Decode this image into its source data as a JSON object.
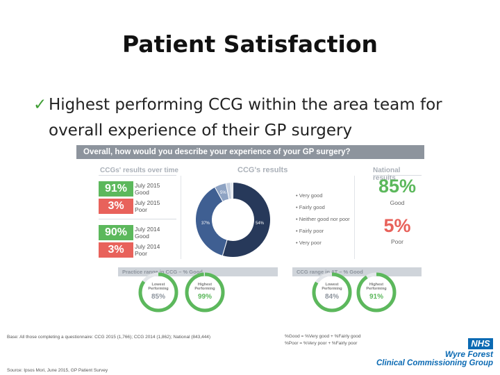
{
  "title": "Patient Satisfaction",
  "bullet": {
    "line1": "Highest performing CCG within the area team for",
    "line2": "overall experience of their GP surgery"
  },
  "panel": {
    "header": "Overall, how would you describe your experience of your GP surgery?",
    "left_heading": "CCGs' results over time",
    "mid_heading": "CCG's results",
    "right_heading": "National results",
    "results_over_time": [
      {
        "pct": "91%",
        "period": "July 2015",
        "label": "Good"
      },
      {
        "pct": "3%",
        "period": "July 2015",
        "label": "Poor"
      },
      {
        "pct": "90%",
        "period": "July 2014",
        "label": "Good"
      },
      {
        "pct": "3%",
        "period": "July 2014",
        "label": "Poor"
      }
    ],
    "donut": {
      "label_small": "5%",
      "label_mid": "37%",
      "label_large": "54%",
      "slices": [
        {
          "name": "Very good",
          "value": 54,
          "color": "#27395a"
        },
        {
          "name": "Fairly good",
          "value": 37,
          "color": "#3f5f92"
        },
        {
          "name": "Neither good nor poor",
          "value": 5,
          "color": "#8ea3c3"
        },
        {
          "name": "Fairly poor",
          "value": 2,
          "color": "#c6d0e0"
        },
        {
          "name": "Very poor",
          "value": 1,
          "color": "#dde3ec"
        }
      ]
    },
    "legend": [
      "Very good",
      "Fairly good",
      "Neither good nor poor",
      "Fairly poor",
      "Very poor"
    ],
    "national": {
      "good_pct": "85%",
      "good_label": "Good",
      "poor_pct": "5%",
      "poor_label": "Poor"
    },
    "ranges": [
      {
        "bar": "Practice range in CCG – % Good",
        "gauges": [
          {
            "title1": "Lowest",
            "title2": "Performing",
            "value_text": "85%",
            "value": 85,
            "value_color": "#8d949d"
          },
          {
            "title1": "Highest",
            "title2": "Performing",
            "value_text": "99%",
            "value": 99,
            "value_color": "#5cb85c"
          }
        ]
      },
      {
        "bar": "CCG range in AT – % Good",
        "gauges": [
          {
            "title1": "Lowest",
            "title2": "Performing",
            "value_text": "84%",
            "value": 84,
            "value_color": "#8d949d"
          },
          {
            "title1": "Highest",
            "title2": "Performing",
            "value_text": "91%",
            "value": 91,
            "value_color": "#5cb85c"
          }
        ]
      }
    ]
  },
  "footer": {
    "base": "Base: All those completing a questionnaire: CCG 2015 (1,766); CCG 2014 (1,862); National (843,444)",
    "good_def": "%Good = %Very good + %Fairly good",
    "poor_def": "%Poor = %Very poor + %Fairly poor",
    "source": "Source: Ipsos Mori, June 2015, GP Patient Survey"
  },
  "branding": {
    "nhs": "NHS",
    "org_line1": "Wyre Forest",
    "org_line2": "Clinical Commissioning Group"
  },
  "colors": {
    "good": "#5cb85c",
    "poor": "#e8625b",
    "nhs_blue": "#0b6ab3",
    "header_grey": "#8d949d"
  }
}
